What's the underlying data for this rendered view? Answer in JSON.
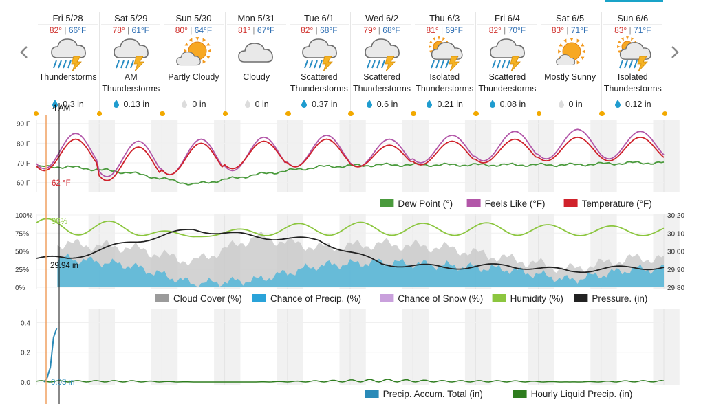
{
  "days": [
    {
      "date": "Fri 5/28",
      "hi": "82°",
      "lo": "66°F",
      "cond1": "Thunderstorms",
      "cond2": "",
      "precip": "0.3 in",
      "icon": "thunderstorm-icon",
      "drop": "rain"
    },
    {
      "date": "Sat 5/29",
      "hi": "78°",
      "lo": "61°F",
      "cond1": "AM",
      "cond2": "Thunderstorms",
      "precip": "0.13 in",
      "icon": "thunderstorm-icon",
      "drop": "rain"
    },
    {
      "date": "Sun 5/30",
      "hi": "80°",
      "lo": "64°F",
      "cond1": "Partly Cloudy",
      "cond2": "",
      "precip": "0 in",
      "icon": "partly-cloudy-icon",
      "drop": "none"
    },
    {
      "date": "Mon 5/31",
      "hi": "81°",
      "lo": "67°F",
      "cond1": "Cloudy",
      "cond2": "",
      "precip": "0 in",
      "icon": "cloudy-icon",
      "drop": "none"
    },
    {
      "date": "Tue 6/1",
      "hi": "82°",
      "lo": "68°F",
      "cond1": "Scattered",
      "cond2": "Thunderstorms",
      "precip": "0.37 in",
      "icon": "thunderstorm-icon",
      "drop": "rain"
    },
    {
      "date": "Wed 6/2",
      "hi": "79°",
      "lo": "68°F",
      "cond1": "Scattered",
      "cond2": "Thunderstorms",
      "precip": "0.6 in",
      "icon": "thunderstorm-icon",
      "drop": "rain"
    },
    {
      "date": "Thu 6/3",
      "hi": "81°",
      "lo": "69°F",
      "cond1": "Isolated",
      "cond2": "Thunderstorms",
      "precip": "0.21 in",
      "icon": "sun-thunderstorm-icon",
      "drop": "rain"
    },
    {
      "date": "Fri 6/4",
      "hi": "82°",
      "lo": "70°F",
      "cond1": "Scattered",
      "cond2": "Thunderstorms",
      "precip": "0.08 in",
      "icon": "thunderstorm-icon",
      "drop": "rain"
    },
    {
      "date": "Sat 6/5",
      "hi": "83°",
      "lo": "71°F",
      "cond1": "Mostly Sunny",
      "cond2": "",
      "precip": "0 in",
      "icon": "mostly-sunny-icon",
      "drop": "none"
    },
    {
      "date": "Sun 6/6",
      "hi": "83°",
      "lo": "71°F",
      "cond1": "Isolated",
      "cond2": "Thunderstorms",
      "precip": "0.12 in",
      "icon": "sun-thunderstorm-icon",
      "drop": "rain"
    }
  ],
  "crosshair": {
    "time_label": "4 AM",
    "temp_label": "62 °F",
    "humidity_label": "98%",
    "pressure_label": "29.94 in",
    "precip_label": "0.03 in"
  },
  "colors": {
    "temperature": "#d0222b",
    "feels_like": "#b256a8",
    "dew_point": "#4a9a3c",
    "humidity": "#8cc63f",
    "pressure": "#222222",
    "cloud_cover": "#c8c8c8",
    "precip_chance": "#5bb8d8",
    "snow_chance": "#c9a0dc",
    "precip_accum": "#2a8ab8",
    "hourly_precip": "#2e7d1e",
    "crosshair": "#f0a060",
    "sun": "#f2a900"
  },
  "chart_data": [
    {
      "type": "line",
      "ylim": [
        55,
        92
      ],
      "y_ticks": [
        "90 F",
        "80 F",
        "70 F",
        "60 F"
      ],
      "legend": [
        "Dew Point (°)",
        "Feels Like (°F)",
        "Temperature (°F)"
      ],
      "series": [
        {
          "name": "Temperature (°F)",
          "day_highs": [
            82,
            78,
            80,
            81,
            82,
            79,
            81,
            82,
            83,
            83
          ],
          "day_lows": [
            66,
            61,
            64,
            67,
            68,
            68,
            69,
            70,
            71,
            71
          ]
        },
        {
          "name": "Feels Like (°F)",
          "day_highs": [
            85,
            81,
            82,
            83,
            84,
            82,
            84,
            86,
            87,
            86
          ],
          "day_lows": [
            67,
            63,
            64,
            66,
            68,
            68,
            70,
            71,
            72,
            72
          ]
        },
        {
          "name": "Dew Point (°)",
          "day_values": [
            68,
            65,
            59,
            64,
            68,
            69,
            69,
            69,
            69,
            70
          ]
        }
      ]
    },
    {
      "type": "area",
      "ylim_left": [
        0,
        100
      ],
      "ylim_right": [
        29.8,
        30.2
      ],
      "y_ticks_left": [
        "100%",
        "75%",
        "50%",
        "25%",
        "0%"
      ],
      "y_ticks_right": [
        "30.20",
        "30.10",
        "30.00",
        "29.90",
        "29.80"
      ],
      "legend": [
        "Cloud Cover (%)",
        "Chance of Precip. (%)",
        "Chance of Snow (%)",
        "Humidity (%)",
        "Pressure. (in)"
      ],
      "series": [
        {
          "name": "Cloud Cover (%)",
          "day_values": [
            60,
            55,
            35,
            70,
            55,
            60,
            55,
            40,
            25,
            40
          ]
        },
        {
          "name": "Chance of Precip. (%)",
          "day_values": [
            40,
            30,
            5,
            10,
            30,
            35,
            30,
            25,
            10,
            25
          ]
        },
        {
          "name": "Chance of Snow (%)",
          "day_values": [
            0,
            0,
            0,
            0,
            0,
            0,
            0,
            0,
            0,
            0
          ]
        },
        {
          "name": "Humidity (%)",
          "day_values": [
            95,
            90,
            70,
            85,
            90,
            90,
            88,
            90,
            85,
            85
          ]
        },
        {
          "name": "Pressure. (in)",
          "day_values": [
            29.96,
            30.05,
            30.12,
            30.08,
            30.06,
            29.93,
            29.91,
            29.92,
            29.89,
            29.91
          ]
        }
      ]
    },
    {
      "type": "line",
      "ylim": [
        0,
        0.5
      ],
      "y_ticks": [
        "0.4",
        "0.2",
        "0.0"
      ],
      "legend": [
        "Precip. Accum. Total (in)",
        "Hourly Liquid Precip. (in)"
      ],
      "series": [
        {
          "name": "Precip. Accum. Total (in)",
          "x_hours": [
            0,
            1,
            2,
            3,
            4
          ],
          "values": [
            0.0,
            0.03,
            0.1,
            0.3,
            0.36
          ]
        },
        {
          "name": "Hourly Liquid Precip. (in)",
          "day_values": [
            0.01,
            0.01,
            0.0,
            0.0,
            0.01,
            0.02,
            0.01,
            0.01,
            0.0,
            0.01
          ]
        }
      ]
    }
  ]
}
